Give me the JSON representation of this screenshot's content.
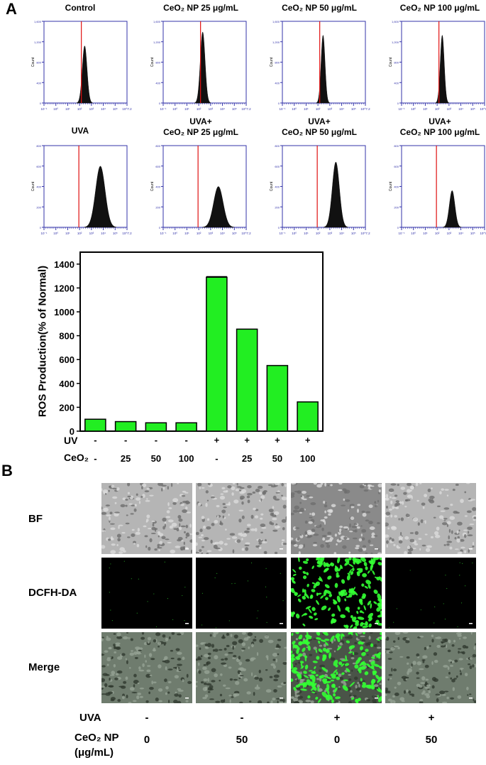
{
  "panel_a_label": "A",
  "panel_b_label": "B",
  "flow_titles": [
    {
      "line1": "Control",
      "line2": ""
    },
    {
      "line1": "CeO₂ NP 25 μg/mL",
      "line2": ""
    },
    {
      "line1": "CeO₂  NP 50 μg/mL",
      "line2": ""
    },
    {
      "line1": "CeO₂ NP 100 μg/mL",
      "line2": ""
    },
    {
      "line1": "UVA",
      "line2": ""
    },
    {
      "line1": "UVA+",
      "line2": "CeO₂ NP 25 μg/mL"
    },
    {
      "line1": "UVA+",
      "line2": "CeO₂ NP 50 μg/mL"
    },
    {
      "line1": "UVA+",
      "line2": "CeO₂ NP 100 μg/mL"
    }
  ],
  "flow_common": {
    "ylabel": "Count",
    "xticks": [
      "10⁻¹",
      "10⁰",
      "10¹",
      "10²",
      "10³",
      "10⁴",
      "10⁵",
      "10^7.2"
    ],
    "yticks_top": [
      "1,600",
      "1,200",
      "800",
      "400",
      "0"
    ],
    "yticks_bottom": [
      "800",
      "600",
      "400",
      "200",
      "0"
    ]
  },
  "flow_peaks": [
    {
      "center": 0.7,
      "width": 0.06,
      "height": 0.7
    },
    {
      "center": 0.68,
      "width": 0.06,
      "height": 0.87
    },
    {
      "center": 0.7,
      "width": 0.05,
      "height": 0.83
    },
    {
      "center": 0.7,
      "width": 0.05,
      "height": 0.83
    },
    {
      "center": 0.97,
      "width": 0.12,
      "height": 0.75
    },
    {
      "center": 0.95,
      "width": 0.12,
      "height": 0.5
    },
    {
      "center": 0.92,
      "width": 0.09,
      "height": 0.8
    },
    {
      "center": 0.87,
      "width": 0.07,
      "height": 0.45
    }
  ],
  "flow_gate": 0.6,
  "chart_data": {
    "type": "bar",
    "ylabel": "ROS Production(% of Normal)",
    "ylim": [
      0,
      1500
    ],
    "yticks": [
      0,
      200,
      400,
      600,
      800,
      1000,
      1200,
      1400
    ],
    "values": [
      100,
      80,
      70,
      70,
      1290,
      855,
      550,
      245
    ],
    "error": [
      0,
      0,
      0,
      0,
      5,
      0,
      0,
      0
    ],
    "bar_color": "#22ee22",
    "uv_label": "UV",
    "ceo2_label": "CeO₂",
    "uv": [
      "-",
      "-",
      "-",
      "-",
      "+",
      "+",
      "+",
      "+"
    ],
    "ceo2": [
      "-",
      "25",
      "50",
      "100",
      "-",
      "25",
      "50",
      "100"
    ]
  },
  "panel_b": {
    "rows": [
      "BF",
      "DCFH-DA",
      "Merge"
    ],
    "uva_label": "UVA",
    "ceo2_label_1": "CeO₂ NP",
    "ceo2_label_2": "(μg/mL)",
    "uva": [
      "-",
      "-",
      "+",
      "+"
    ],
    "ceo2": [
      "0",
      "50",
      "0",
      "50"
    ],
    "fluor_color": "#33ff33"
  }
}
